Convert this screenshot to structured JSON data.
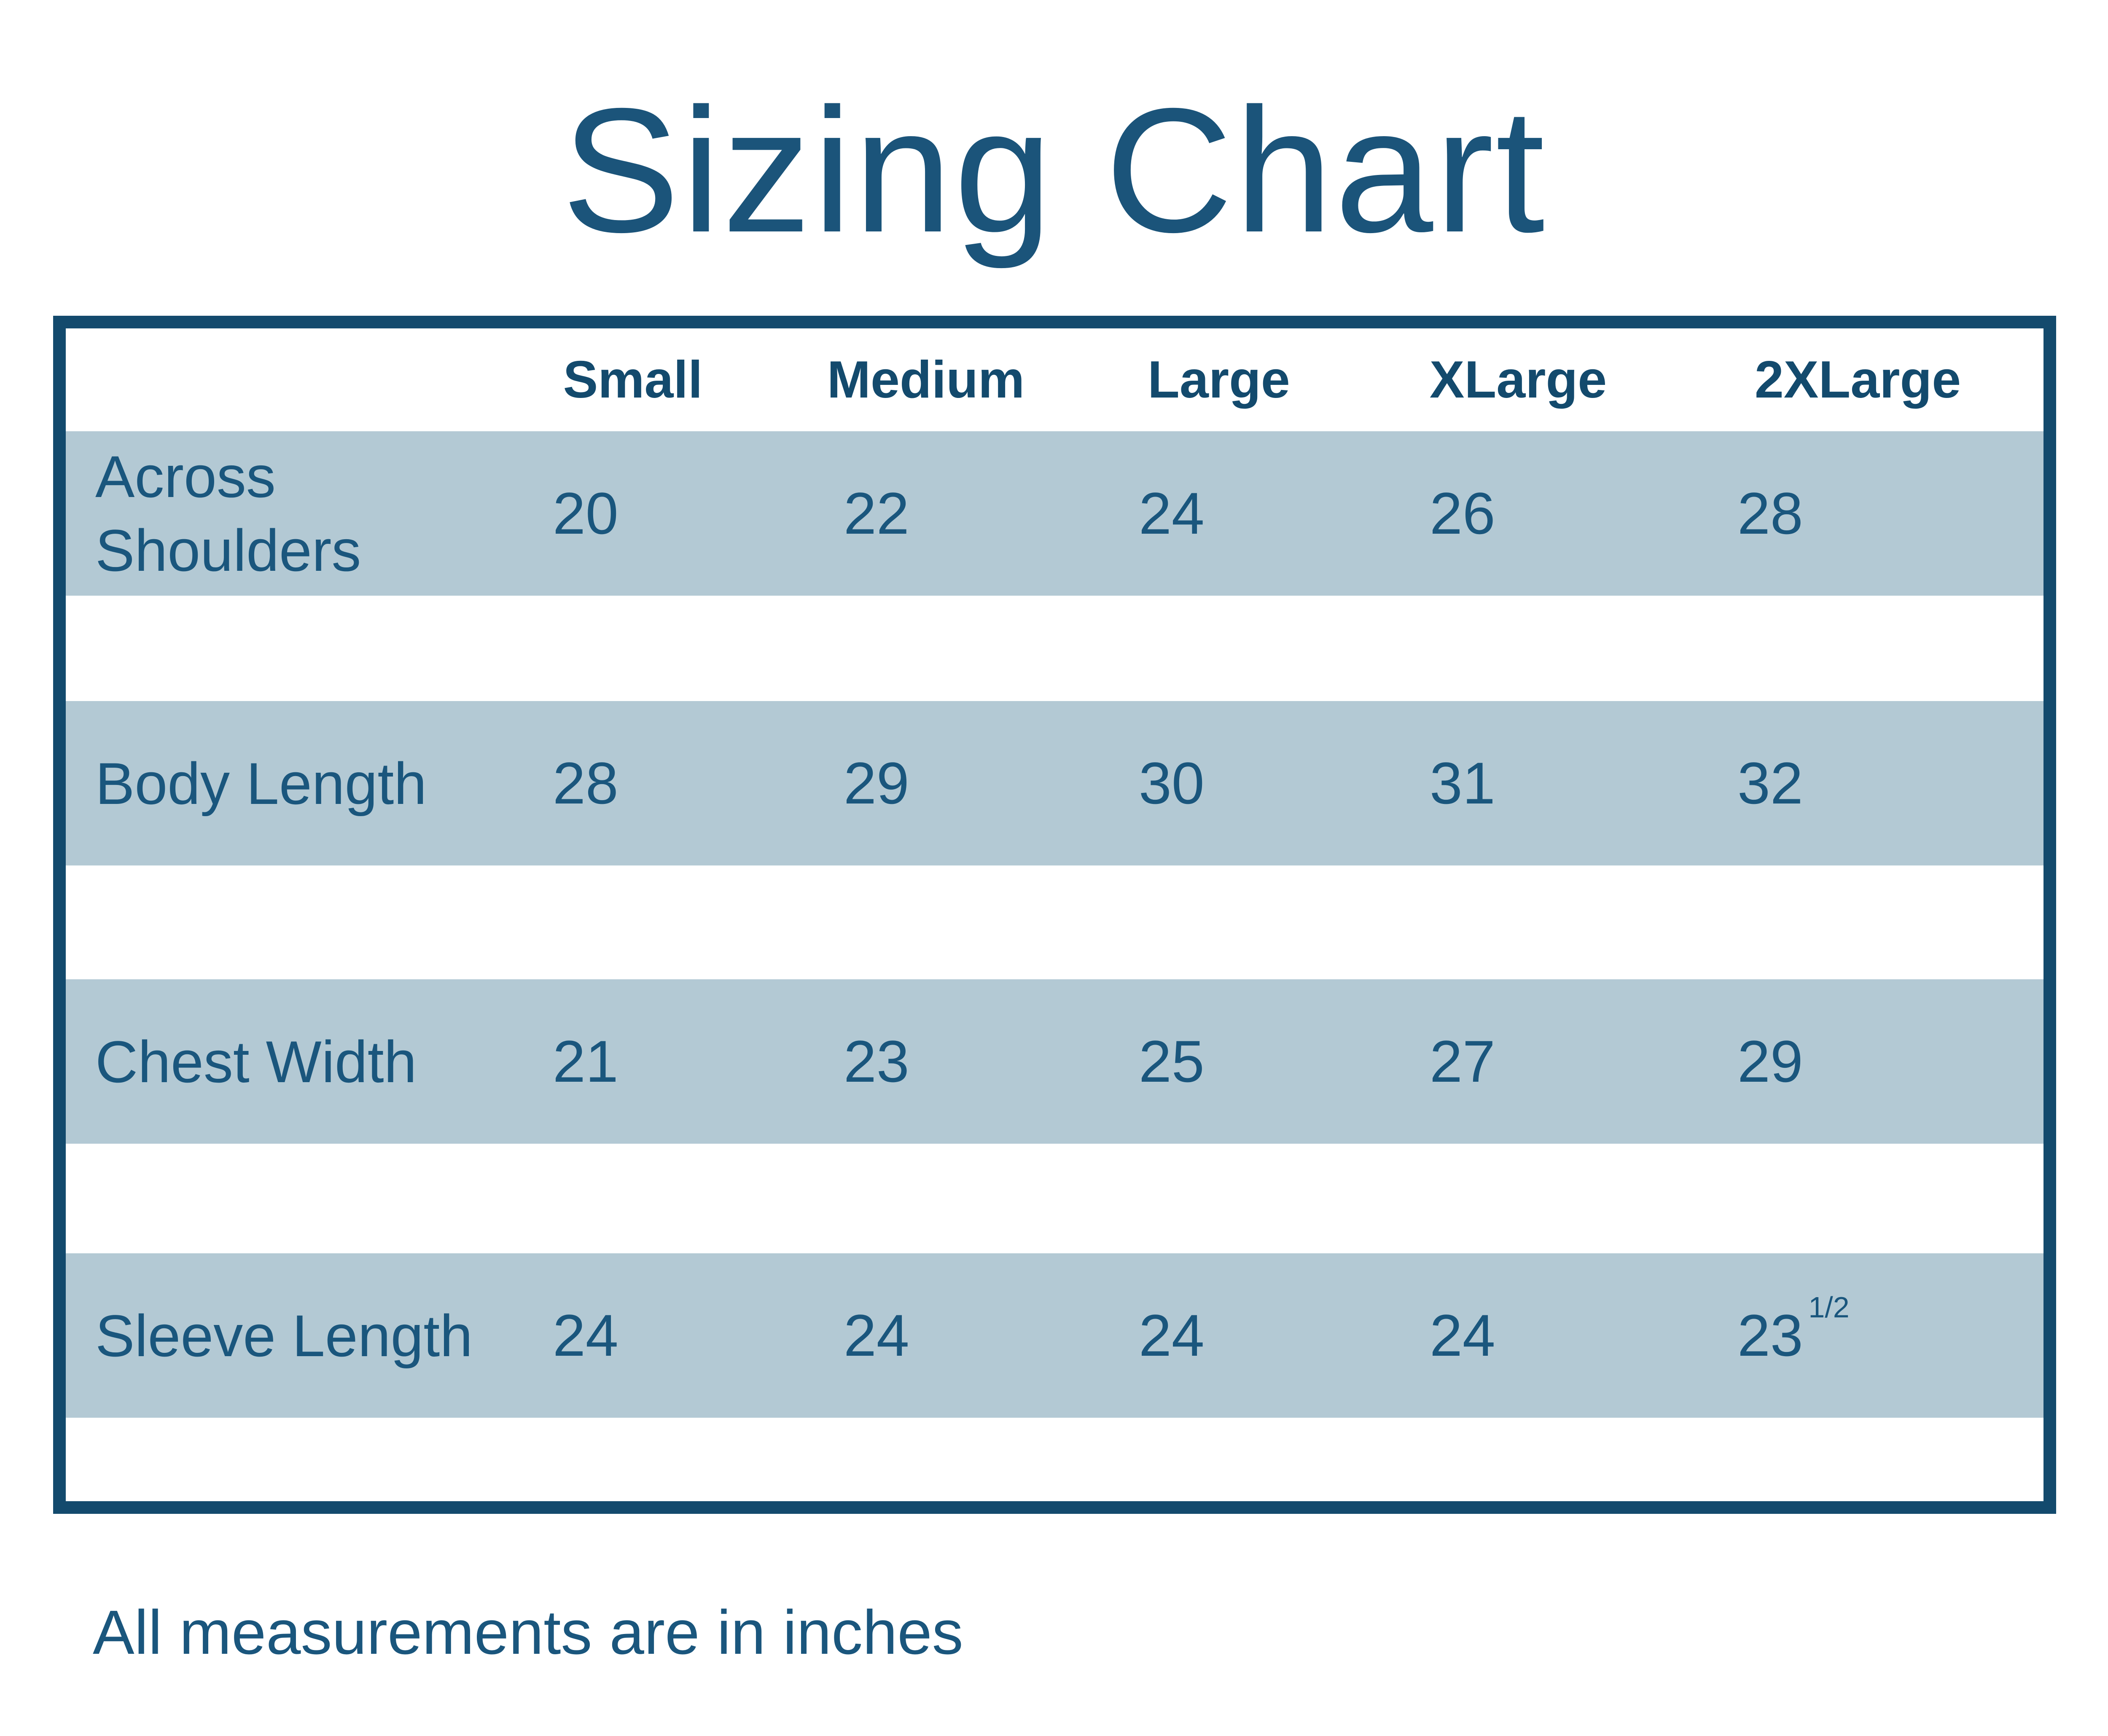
{
  "title": "Sizing Chart",
  "footer": "All measurements are in inches",
  "colors": {
    "border_navy": "#134a6d",
    "band_blue": "#b3c9d4",
    "text_blue": "#1a567d",
    "background": "#ffffff"
  },
  "table": {
    "headers": [
      "Small",
      "Medium",
      "Large",
      "XLarge",
      "2XLarge"
    ],
    "rows": [
      {
        "label": "Across Shoulders",
        "values": [
          {
            "main": "20"
          },
          {
            "main": "22"
          },
          {
            "main": "24"
          },
          {
            "main": "26"
          },
          {
            "main": "28"
          }
        ]
      },
      {
        "label": "Body Length",
        "values": [
          {
            "main": "28"
          },
          {
            "main": "29"
          },
          {
            "main": "30"
          },
          {
            "main": "31"
          },
          {
            "main": "32"
          }
        ]
      },
      {
        "label": "Chest Width",
        "values": [
          {
            "main": "21"
          },
          {
            "main": "23"
          },
          {
            "main": "25"
          },
          {
            "main": "27"
          },
          {
            "main": "29"
          }
        ]
      },
      {
        "label": "Sleeve Length",
        "values": [
          {
            "main": "24"
          },
          {
            "main": "24"
          },
          {
            "main": "24"
          },
          {
            "main": "24"
          },
          {
            "main": "23",
            "sup": "1/2"
          }
        ]
      }
    ]
  },
  "chart_data": {
    "type": "table",
    "title": "Sizing Chart",
    "categories": [
      "Small",
      "Medium",
      "Large",
      "XLarge",
      "2XLarge"
    ],
    "series": [
      {
        "name": "Across Shoulders",
        "values": [
          20,
          22,
          24,
          26,
          28
        ]
      },
      {
        "name": "Body Length",
        "values": [
          28,
          29,
          30,
          31,
          32
        ]
      },
      {
        "name": "Chest Width",
        "values": [
          21,
          23,
          25,
          27,
          29
        ]
      },
      {
        "name": "Sleeve Length",
        "values": [
          24,
          24,
          24,
          24,
          23.5
        ]
      }
    ],
    "note": "All measurements are in inches",
    "layout": "row bands shaded light blue, white gaps between rows, navy outer border, bold centered column headers"
  }
}
